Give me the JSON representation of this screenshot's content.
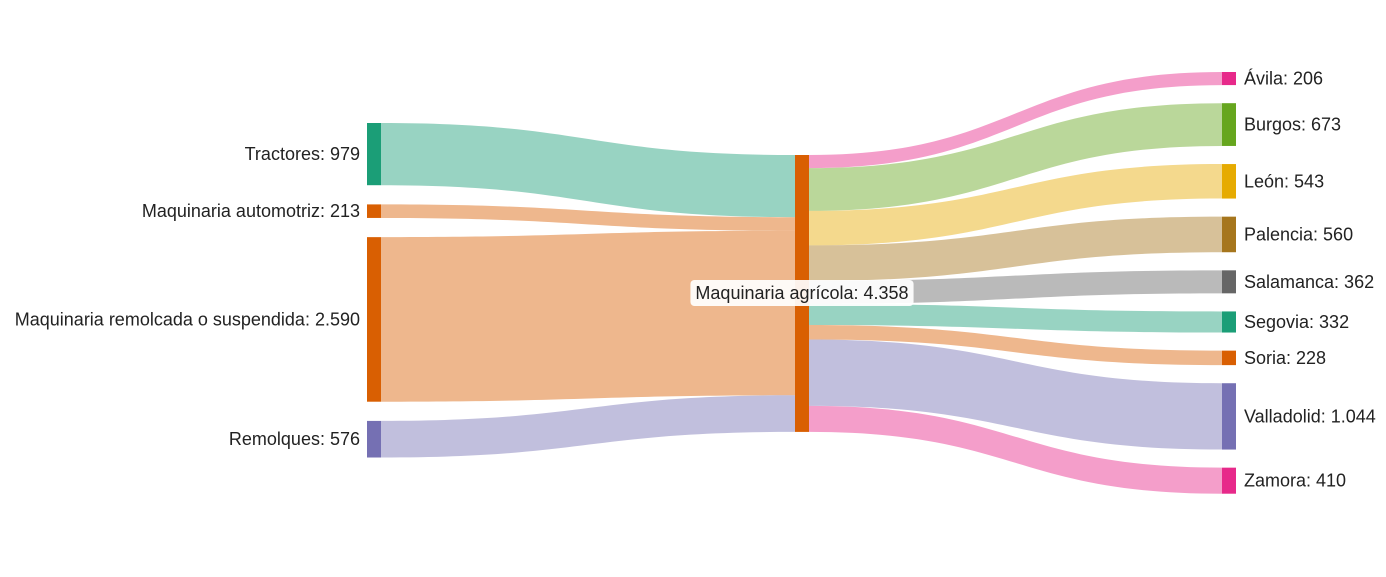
{
  "chart_data": {
    "type": "sankey",
    "colors": {
      "Tractores": "#1b9e77",
      "Maquinaria automotriz": "#d95f02",
      "Maquinaria remolcada o suspendida": "#d95f02",
      "Remolques": "#7570b3",
      "Maquinaria agrícola": "#d95f02",
      "Ávila": "#e7298a",
      "Burgos": "#66a61e",
      "León": "#e6ab02",
      "Palencia": "#a6761d",
      "Salamanca": "#666666",
      "Segovia": "#1b9e77",
      "Soria": "#d95f02",
      "Valladolid": "#7570b3",
      "Zamora": "#e7298a"
    },
    "sources": [
      {
        "name": "Tractores",
        "value": 979,
        "label": "Tractores: 979"
      },
      {
        "name": "Maquinaria automotriz",
        "value": 213,
        "label": "Maquinaria automotriz: 213"
      },
      {
        "name": "Maquinaria remolcada o suspendida",
        "value": 2590,
        "label": "Maquinaria remolcada o suspendida: 2.590"
      },
      {
        "name": "Remolques",
        "value": 576,
        "label": "Remolques: 576"
      }
    ],
    "center": {
      "name": "Maquinaria agrícola",
      "value": 4358,
      "label": "Maquinaria agrícola: 4.358"
    },
    "targets": [
      {
        "name": "Ávila",
        "value": 206,
        "label": "Ávila: 206"
      },
      {
        "name": "Burgos",
        "value": 673,
        "label": "Burgos: 673"
      },
      {
        "name": "León",
        "value": 543,
        "label": "León: 543"
      },
      {
        "name": "Palencia",
        "value": 560,
        "label": "Palencia: 560"
      },
      {
        "name": "Salamanca",
        "value": 362,
        "label": "Salamanca: 362"
      },
      {
        "name": "Segovia",
        "value": 332,
        "label": "Segovia: 332"
      },
      {
        "name": "Soria",
        "value": 228,
        "label": "Soria: 228"
      },
      {
        "name": "Valladolid",
        "value": 1044,
        "label": "Valladolid: 1.044"
      },
      {
        "name": "Zamora",
        "value": 410,
        "label": "Zamora: 410"
      }
    ]
  }
}
